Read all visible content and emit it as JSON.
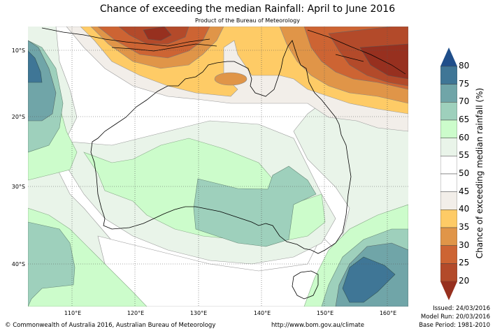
{
  "header": {
    "title": "Chance of exceeding the median Rainfall: April to June 2016",
    "subtitle": "Product of the Bureau of Meteorology"
  },
  "map": {
    "type": "filled-contour",
    "region": "Australia",
    "lat_labels": [
      "10°S",
      "20°S",
      "30°S",
      "40°S"
    ],
    "lon_labels": [
      "110°E",
      "120°E",
      "130°E",
      "140°E",
      "150°E",
      "160°E"
    ],
    "gridlines": "dotted",
    "summary": [
      {
        "area": "Indonesia / north of Australia",
        "range": "20-30%"
      },
      {
        "area": "Northern Australia coast",
        "range": "35-45%"
      },
      {
        "area": "Indian Ocean west of Australia",
        "range": "65-80%"
      },
      {
        "area": "South Australia / western Victoria",
        "range": "65-70%"
      },
      {
        "area": "Tasman Sea east of Tasmania",
        "range": "70-80%"
      },
      {
        "area": "Central Australia",
        "range": "55-65%"
      }
    ]
  },
  "colorbar": {
    "label": "Chance of exceeding median rainfall (%)",
    "ticks": [
      "80",
      "75",
      "70",
      "65",
      "60",
      "55",
      "50",
      "45",
      "40",
      "35",
      "30",
      "25",
      "20"
    ],
    "bins": [
      {
        "range": ">80",
        "color": "#1f4e8a"
      },
      {
        "range": "75-80",
        "color": "#3f7696"
      },
      {
        "range": "70-75",
        "color": "#70a5a8"
      },
      {
        "range": "65-70",
        "color": "#9ed0bc"
      },
      {
        "range": "60-65",
        "color": "#ccfccb"
      },
      {
        "range": "55-60",
        "color": "#e9f4e9"
      },
      {
        "range": "50-55",
        "color": "#ffffff"
      },
      {
        "range": "45-50",
        "color": "#ffffff"
      },
      {
        "range": "40-45",
        "color": "#f2eee9"
      },
      {
        "range": "35-40",
        "color": "#fecb66"
      },
      {
        "range": "30-35",
        "color": "#e09548"
      },
      {
        "range": "25-30",
        "color": "#cd6433"
      },
      {
        "range": "20-25",
        "color": "#b34a2a"
      },
      {
        "range": "<20",
        "color": "#97301f"
      }
    ]
  },
  "footer": {
    "copyright": "© Commonwealth of Australia 2016, Australian Bureau of Meteorology",
    "url": "http://www.bom.gov.au/climate",
    "issued": "Issued: 24/03/2016",
    "model_run": "Model Run: 20/03/2016",
    "base_period": "Base Period: 1981-2010"
  }
}
